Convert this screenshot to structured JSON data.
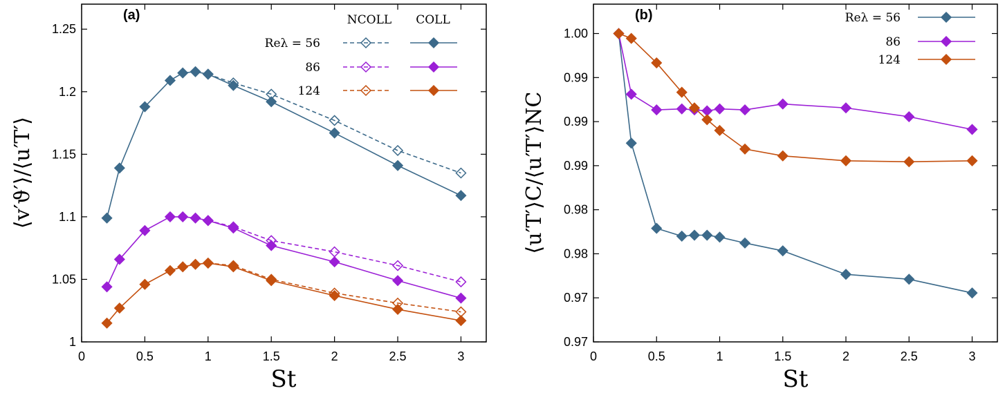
{
  "chart_data": [
    {
      "type": "line",
      "panel_label": "(a)",
      "xlabel": "St",
      "ylabel": "⟨v′ϑ′⟩/⟨u′T′⟩",
      "xlim": [
        0,
        3.2
      ],
      "ylim": [
        1,
        1.27
      ],
      "xticks": [
        "0",
        "0.5",
        "1",
        "1.5",
        "2",
        "2.5",
        "3"
      ],
      "yticks": [
        "1",
        "1.05",
        "1.1",
        "1.15",
        "1.2",
        "1.25"
      ],
      "legend": {
        "position": "top-right",
        "header_ncoll": "NCOLL",
        "header_coll": "COLL",
        "rows": [
          "Reλ = 56",
          "86",
          "124"
        ]
      },
      "colors": {
        "re56": "#3c6a8a",
        "re86": "#9b1fd6",
        "re124": "#c4500f"
      },
      "series": [
        {
          "re": "56",
          "style": "coll",
          "color": "#3c6a8a",
          "x": [
            0.2,
            0.3,
            0.5,
            0.7,
            0.8,
            0.9,
            1.0,
            1.2,
            1.5,
            2.0,
            2.5,
            3.0
          ],
          "y": [
            1.099,
            1.139,
            1.188,
            1.209,
            1.215,
            1.216,
            1.214,
            1.205,
            1.192,
            1.167,
            1.141,
            1.117
          ]
        },
        {
          "re": "56",
          "style": "ncoll",
          "color": "#3c6a8a",
          "x": [
            1.0,
            1.2,
            1.5,
            2.0,
            2.5,
            3.0
          ],
          "y": [
            1.214,
            1.207,
            1.198,
            1.177,
            1.153,
            1.135
          ]
        },
        {
          "re": "86",
          "style": "coll",
          "color": "#9b1fd6",
          "x": [
            0.2,
            0.3,
            0.5,
            0.7,
            0.8,
            0.9,
            1.0,
            1.2,
            1.5,
            2.0,
            2.5,
            3.0
          ],
          "y": [
            1.044,
            1.066,
            1.089,
            1.1,
            1.1,
            1.099,
            1.097,
            1.091,
            1.077,
            1.064,
            1.049,
            1.035
          ]
        },
        {
          "re": "86",
          "style": "ncoll",
          "color": "#9b1fd6",
          "x": [
            1.0,
            1.2,
            1.5,
            2.0,
            2.5,
            3.0
          ],
          "y": [
            1.097,
            1.092,
            1.081,
            1.072,
            1.061,
            1.048
          ]
        },
        {
          "re": "124",
          "style": "coll",
          "color": "#c4500f",
          "x": [
            0.2,
            0.3,
            0.5,
            0.7,
            0.8,
            0.9,
            1.0,
            1.2,
            1.5,
            2.0,
            2.5,
            3.0
          ],
          "y": [
            1.015,
            1.027,
            1.046,
            1.057,
            1.06,
            1.062,
            1.063,
            1.06,
            1.049,
            1.037,
            1.026,
            1.017
          ]
        },
        {
          "re": "124",
          "style": "ncoll",
          "color": "#c4500f",
          "x": [
            1.0,
            1.2,
            1.5,
            2.0,
            2.5,
            3.0
          ],
          "y": [
            1.063,
            1.061,
            1.05,
            1.039,
            1.031,
            1.024
          ]
        }
      ]
    },
    {
      "type": "line",
      "panel_label": "(b)",
      "xlabel": "St",
      "ylabel": "⟨u′T′⟩C/⟨u′T′⟩NC",
      "xlim": [
        0,
        3.2
      ],
      "ylim": [
        0.9665,
        1.001
      ],
      "xticks": [
        "0",
        "0.5",
        "1",
        "1.5",
        "2",
        "2.5",
        "3"
      ],
      "yticks": [
        {
          "label": "0.97",
          "value": 0.9665
        },
        {
          "label": "0.97",
          "value": 0.971
        },
        {
          "label": "0.98",
          "value": 0.9755
        },
        {
          "label": "0.98",
          "value": 0.98
        },
        {
          "label": "0.99",
          "value": 0.9845
        },
        {
          "label": "0.99",
          "value": 0.989
        },
        {
          "label": "0.99",
          "value": 0.9935
        },
        {
          "label": "1.00",
          "value": 0.998
        }
      ],
      "legend": {
        "position": "top-right",
        "rows": [
          "Reλ = 56",
          "86",
          "124"
        ]
      },
      "colors": {
        "re56": "#3c6a8a",
        "re86": "#9b1fd6",
        "re124": "#c4500f"
      },
      "series": [
        {
          "re": "56",
          "color": "#3c6a8a",
          "x": [
            0.2,
            0.3,
            0.5,
            0.7,
            0.8,
            0.9,
            1.0,
            1.2,
            1.5,
            2.0,
            2.5,
            3.0
          ],
          "y": [
            0.998,
            0.9868,
            0.9781,
            0.9773,
            0.9774,
            0.9774,
            0.9772,
            0.9766,
            0.9758,
            0.9734,
            0.9729,
            0.9715
          ]
        },
        {
          "re": "86",
          "color": "#9b1fd6",
          "x": [
            0.2,
            0.3,
            0.5,
            0.7,
            0.8,
            0.9,
            1.0,
            1.2,
            1.5,
            2.0,
            2.5,
            3.0
          ],
          "y": [
            0.998,
            0.9918,
            0.9902,
            0.9903,
            0.9902,
            0.9901,
            0.9903,
            0.9902,
            0.9908,
            0.9904,
            0.9895,
            0.9882
          ]
        },
        {
          "re": "124",
          "color": "#c4500f",
          "x": [
            0.2,
            0.3,
            0.5,
            0.7,
            0.8,
            0.9,
            1.0,
            1.2,
            1.5,
            2.0,
            2.5,
            3.0
          ],
          "y": [
            0.998,
            0.9975,
            0.995,
            0.992,
            0.9904,
            0.9892,
            0.9881,
            0.9862,
            0.9855,
            0.985,
            0.9849,
            0.985
          ]
        }
      ]
    }
  ]
}
